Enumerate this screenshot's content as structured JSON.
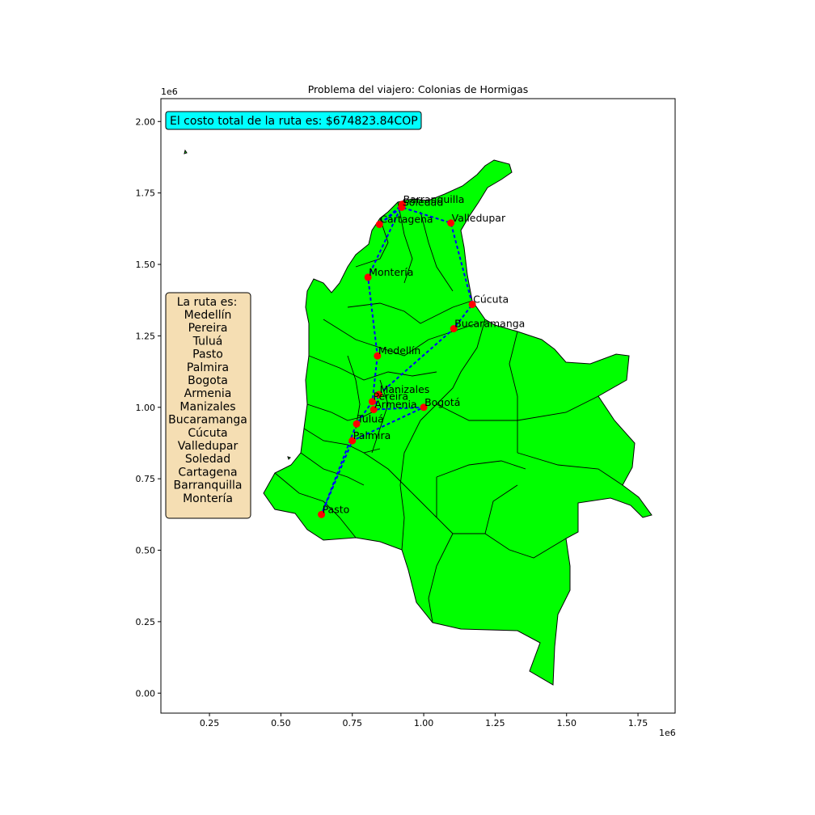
{
  "title": "Problema del viajero: Colonias de Hormigas",
  "x_exponent": "1e6",
  "y_exponent": "1e6",
  "x_ticks": [
    "0.25",
    "0.50",
    "0.75",
    "1.00",
    "1.25",
    "1.50",
    "1.75"
  ],
  "y_ticks": [
    "0.00",
    "0.25",
    "0.50",
    "0.75",
    "1.00",
    "1.25",
    "1.50",
    "1.75",
    "2.00"
  ],
  "cost_text": "El costo total de la ruta es: $674823.84COP",
  "route_box": {
    "heading": "La ruta es:",
    "cities": [
      "Medellín",
      "Pereira",
      "Tuluá",
      "Pasto",
      "Palmira",
      "Bogota",
      "Armenia",
      "Manizales",
      "Bucaramanga",
      "Cúcuta",
      "Valledupar",
      "Soledad",
      "Cartagena",
      "Barranquilla",
      "Montería"
    ]
  },
  "colors": {
    "land": "#00ff00",
    "route": "#0000ff",
    "city": "#ff0000",
    "cost_box": "#00ffff",
    "route_box": "#f5deb3"
  },
  "chart_data": {
    "type": "scatter",
    "title": "Problema del viajero: Colonias de Hormigas",
    "xlim": [
      0.08,
      1.88
    ],
    "ylim": [
      -0.07,
      2.08
    ],
    "cities": [
      {
        "name": "Barranquilla",
        "x": 0.925,
        "y": 1.71
      },
      {
        "name": "Soledad",
        "x": 0.923,
        "y": 1.7
      },
      {
        "name": "Cartagena",
        "x": 0.845,
        "y": 1.64
      },
      {
        "name": "Valledupar",
        "x": 1.095,
        "y": 1.645
      },
      {
        "name": "Montería",
        "x": 0.805,
        "y": 1.455
      },
      {
        "name": "Cúcuta",
        "x": 1.17,
        "y": 1.36
      },
      {
        "name": "Bucaramanga",
        "x": 1.105,
        "y": 1.275
      },
      {
        "name": "Medellín",
        "x": 0.838,
        "y": 1.18
      },
      {
        "name": "Manizales",
        "x": 0.843,
        "y": 1.045
      },
      {
        "name": "Pereira",
        "x": 0.82,
        "y": 1.02
      },
      {
        "name": "Armenia",
        "x": 0.825,
        "y": 0.992
      },
      {
        "name": "Bogotá",
        "x": 1.0,
        "y": 1.0
      },
      {
        "name": "Tuluá",
        "x": 0.765,
        "y": 0.942
      },
      {
        "name": "Palmira",
        "x": 0.75,
        "y": 0.883
      },
      {
        "name": "Pasto",
        "x": 0.642,
        "y": 0.625
      }
    ],
    "route": [
      "Medellín",
      "Pereira",
      "Tuluá",
      "Pasto",
      "Palmira",
      "Bogotá",
      "Armenia",
      "Manizales",
      "Bucaramanga",
      "Cúcuta",
      "Valledupar",
      "Soledad",
      "Cartagena",
      "Barranquilla",
      "Montería",
      "Medellín"
    ]
  }
}
